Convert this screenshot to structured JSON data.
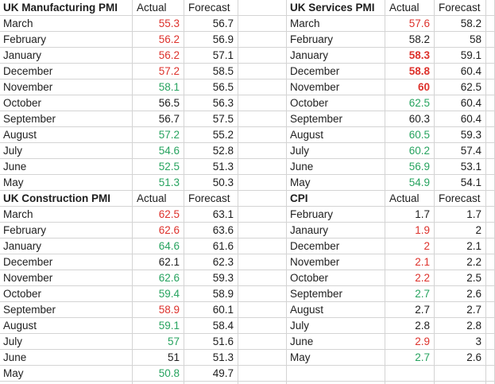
{
  "colors": {
    "red": "#dd322c",
    "green": "#27a35f",
    "text": "#1e1e1e",
    "gridline": "#d4d4d4",
    "background": "#ffffff"
  },
  "tables": {
    "manufacturing": {
      "title": "UK Manufacturing PMI",
      "actual_header": "Actual",
      "forecast_header": "Forecast",
      "rows": [
        {
          "month": "March",
          "actual": "55.3",
          "actual_style": "red",
          "forecast": "56.7"
        },
        {
          "month": "February",
          "actual": "56.2",
          "actual_style": "red",
          "forecast": "56.9"
        },
        {
          "month": "January",
          "actual": "56.2",
          "actual_style": "red",
          "forecast": "57.1"
        },
        {
          "month": "December",
          "actual": "57.2",
          "actual_style": "red",
          "forecast": "58.5"
        },
        {
          "month": "November",
          "actual": "58.1",
          "actual_style": "green",
          "forecast": "56.5"
        },
        {
          "month": "October",
          "actual": "56.5",
          "actual_style": "black",
          "forecast": "56.3"
        },
        {
          "month": "September",
          "actual": "56.7",
          "actual_style": "black",
          "forecast": "57.5"
        },
        {
          "month": "August",
          "actual": "57.2",
          "actual_style": "green",
          "forecast": "55.2"
        },
        {
          "month": "July",
          "actual": "54.6",
          "actual_style": "green",
          "forecast": "52.8"
        },
        {
          "month": "June",
          "actual": "52.5",
          "actual_style": "green",
          "forecast": "51.3"
        },
        {
          "month": "May",
          "actual": "51.3",
          "actual_style": "green",
          "forecast": "50.3"
        }
      ]
    },
    "services": {
      "title": "UK Services PMI",
      "actual_header": "Actual",
      "forecast_header": "Forecast",
      "rows": [
        {
          "month": "March",
          "actual": "57.6",
          "actual_style": "red",
          "forecast": "58.2"
        },
        {
          "month": "February",
          "actual": "58.2",
          "actual_style": "black",
          "forecast": "58"
        },
        {
          "month": "January",
          "actual": "58.3",
          "actual_style": "red-bold",
          "forecast": "59.1"
        },
        {
          "month": "December",
          "actual": "58.8",
          "actual_style": "red-bold",
          "forecast": "60.4"
        },
        {
          "month": "November",
          "actual": "60",
          "actual_style": "red-bold",
          "forecast": "62.5"
        },
        {
          "month": "October",
          "actual": "62.5",
          "actual_style": "green",
          "forecast": "60.4"
        },
        {
          "month": "September",
          "actual": "60.3",
          "actual_style": "black",
          "forecast": "60.4"
        },
        {
          "month": "August",
          "actual": "60.5",
          "actual_style": "green",
          "forecast": "59.3"
        },
        {
          "month": "July",
          "actual": "60.2",
          "actual_style": "green",
          "forecast": "57.4"
        },
        {
          "month": "June",
          "actual": "56.9",
          "actual_style": "green",
          "forecast": "53.1"
        },
        {
          "month": "May",
          "actual": "54.9",
          "actual_style": "green",
          "forecast": "54.1"
        }
      ]
    },
    "construction": {
      "title": "UK Construction PMI",
      "actual_header": "Actual",
      "forecast_header": "Forecast",
      "rows": [
        {
          "month": "March",
          "actual": "62.5",
          "actual_style": "red",
          "forecast": "63.1"
        },
        {
          "month": "February",
          "actual": "62.6",
          "actual_style": "red",
          "forecast": "63.6"
        },
        {
          "month": "January",
          "actual": "64.6",
          "actual_style": "green",
          "forecast": "61.6"
        },
        {
          "month": "December",
          "actual": "62.1",
          "actual_style": "black",
          "forecast": "62.3"
        },
        {
          "month": "November",
          "actual": "62.6",
          "actual_style": "green",
          "forecast": "59.3"
        },
        {
          "month": "October",
          "actual": "59.4",
          "actual_style": "green",
          "forecast": "58.9"
        },
        {
          "month": "September",
          "actual": "58.9",
          "actual_style": "red",
          "forecast": "60.1"
        },
        {
          "month": "August",
          "actual": "59.1",
          "actual_style": "green",
          "forecast": "58.4"
        },
        {
          "month": "July",
          "actual": "57",
          "actual_style": "green",
          "forecast": "51.6"
        },
        {
          "month": "June",
          "actual": "51",
          "actual_style": "black",
          "forecast": "51.3"
        },
        {
          "month": "May",
          "actual": "50.8",
          "actual_style": "green",
          "forecast": "49.7"
        }
      ]
    },
    "cpi": {
      "title": "CPI",
      "actual_header": "Actual",
      "forecast_header": "Forecast",
      "rows": [
        {
          "month": "February",
          "actual": "1.7",
          "actual_style": "black",
          "forecast": "1.7"
        },
        {
          "month": "Janaury",
          "actual": "1.9",
          "actual_style": "red",
          "forecast": "2"
        },
        {
          "month": "December",
          "actual": "2",
          "actual_style": "red",
          "forecast": "2.1"
        },
        {
          "month": "November",
          "actual": "2.1",
          "actual_style": "red",
          "forecast": "2.2"
        },
        {
          "month": "October",
          "actual": "2.2",
          "actual_style": "red",
          "forecast": "2.5"
        },
        {
          "month": "September",
          "actual": "2.7",
          "actual_style": "green",
          "forecast": "2.6"
        },
        {
          "month": "August",
          "actual": "2.7",
          "actual_style": "black",
          "forecast": "2.7"
        },
        {
          "month": "July",
          "actual": "2.8",
          "actual_style": "black",
          "forecast": "2.8"
        },
        {
          "month": "June",
          "actual": "2.9",
          "actual_style": "red",
          "forecast": "3"
        },
        {
          "month": "May",
          "actual": "2.7",
          "actual_style": "green",
          "forecast": "2.6"
        }
      ]
    }
  }
}
